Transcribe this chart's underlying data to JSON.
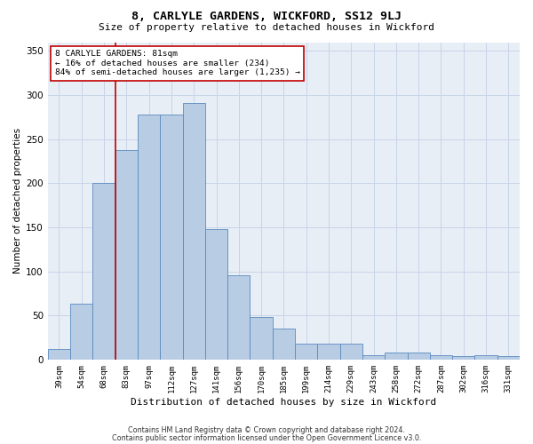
{
  "title": "8, CARLYLE GARDENS, WICKFORD, SS12 9LJ",
  "subtitle": "Size of property relative to detached houses in Wickford",
  "xlabel": "Distribution of detached houses by size in Wickford",
  "ylabel": "Number of detached properties",
  "categories": [
    "39sqm",
    "54sqm",
    "68sqm",
    "83sqm",
    "97sqm",
    "112sqm",
    "127sqm",
    "141sqm",
    "156sqm",
    "170sqm",
    "185sqm",
    "199sqm",
    "214sqm",
    "229sqm",
    "243sqm",
    "258sqm",
    "272sqm",
    "287sqm",
    "302sqm",
    "316sqm",
    "331sqm"
  ],
  "values": [
    12,
    63,
    200,
    238,
    278,
    278,
    291,
    148,
    96,
    48,
    35,
    18,
    18,
    18,
    5,
    8,
    8,
    5,
    4,
    5,
    4
  ],
  "bar_color": "#b8cce4",
  "bar_edge_color": "#5a8abf",
  "bar_edge_width": 0.6,
  "vline_index": 3,
  "vline_color": "#c00000",
  "annotation_line1": "8 CARLYLE GARDENS: 81sqm",
  "annotation_line2": "← 16% of detached houses are smaller (234)",
  "annotation_line3": "84% of semi-detached houses are larger (1,235) →",
  "annotation_box_color": "#c00000",
  "ylim": [
    0,
    360
  ],
  "yticks": [
    0,
    50,
    100,
    150,
    200,
    250,
    300,
    350
  ],
  "grid_color": "#c8d4e8",
  "bg_color": "#e8eef6",
  "title_fontsize": 9.5,
  "subtitle_fontsize": 8,
  "footer1": "Contains HM Land Registry data © Crown copyright and database right 2024.",
  "footer2": "Contains public sector information licensed under the Open Government Licence v3.0."
}
